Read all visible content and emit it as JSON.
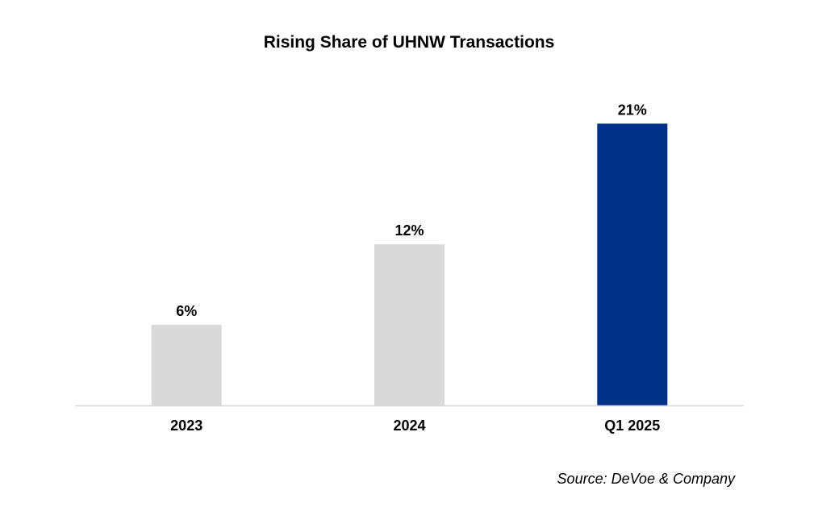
{
  "chart_data": {
    "type": "bar",
    "title": "Rising Share of UHNW Transactions",
    "categories": [
      "2023",
      "2024",
      "Q1 2025"
    ],
    "values": [
      6,
      12,
      21
    ],
    "data_labels": [
      "6%",
      "12%",
      "21%"
    ],
    "unit": "%",
    "ylim": [
      0,
      24
    ],
    "grid": false,
    "legend": "none",
    "bar_colors": [
      "#D9D9D9",
      "#D9D9D9",
      "#003087"
    ],
    "axis_color": "#D9D9D9",
    "source": "Source: DeVoe & Company"
  }
}
